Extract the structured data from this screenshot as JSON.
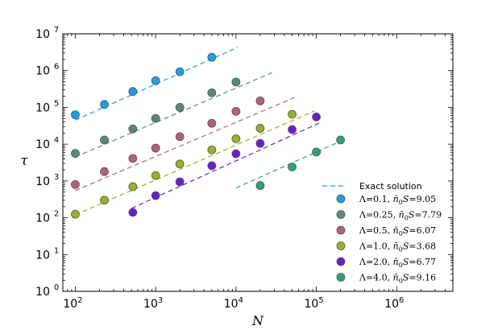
{
  "chart_data": {
    "type": "scatter",
    "xlabel": "N",
    "ylabel": "τ",
    "xscale": "log",
    "yscale": "log",
    "xlim": [
      70,
      5000000
    ],
    "ylim": [
      1,
      10000000
    ],
    "x_ticks": [
      {
        "value": 100,
        "base": "10",
        "exp": "2"
      },
      {
        "value": 1000,
        "base": "10",
        "exp": "3"
      },
      {
        "value": 10000,
        "base": "10",
        "exp": "4"
      },
      {
        "value": 100000,
        "base": "10",
        "exp": "5"
      },
      {
        "value": 1000000,
        "base": "10",
        "exp": "6"
      }
    ],
    "y_ticks": [
      {
        "value": 1,
        "base": "10",
        "exp": "0"
      },
      {
        "value": 10,
        "base": "10",
        "exp": "1"
      },
      {
        "value": 100,
        "base": "10",
        "exp": "2"
      },
      {
        "value": 1000,
        "base": "10",
        "exp": "3"
      },
      {
        "value": 10000,
        "base": "10",
        "exp": "4"
      },
      {
        "value": 100000,
        "base": "10",
        "exp": "5"
      },
      {
        "value": 1000000,
        "base": "10",
        "exp": "6"
      },
      {
        "value": 10000000,
        "base": "10",
        "exp": "7"
      }
    ],
    "legend_position": "lower-right",
    "legend_line_label": "Exact solution",
    "line_color": "#1f9fe0",
    "series": [
      {
        "name": "Λ=0.1, n̄₀S=9.05",
        "lambda": "0.1",
        "value": "9.05",
        "color": "#1f9fe0",
        "line_color": "#1f9fe0",
        "x": [
          100,
          230,
          520,
          1000,
          2000,
          5000
        ],
        "y": [
          63000,
          120000,
          270000,
          530000,
          930000,
          2300000
        ],
        "line": [
          [
            100,
            45000
          ],
          [
            10500,
            4300000
          ]
        ]
      },
      {
        "name": "Λ=0.25, n̄₀S=7.79",
        "lambda": "0.25",
        "value": "7.79",
        "color": "#5a8a77",
        "line_color": "#5a8a77",
        "x": [
          100,
          230,
          520,
          1000,
          2000,
          5000,
          10000
        ],
        "y": [
          5600,
          13000,
          26000,
          50000,
          100000,
          250000,
          490000
        ],
        "line": [
          [
            100,
            4500
          ],
          [
            28000,
            880000
          ]
        ]
      },
      {
        "name": "Λ=0.5, n̄₀S=6.07",
        "lambda": "0.5",
        "value": "6.07",
        "color": "#b5607a",
        "line_color": "#b5607a",
        "x": [
          100,
          230,
          520,
          1000,
          2000,
          5000,
          10000,
          20000
        ],
        "y": [
          800,
          1800,
          4100,
          7800,
          16000,
          37000,
          78000,
          150000
        ],
        "line": [
          [
            100,
            550
          ],
          [
            55000,
            190000
          ]
        ]
      },
      {
        "name": "Λ=1.0, n̄₀S=3.68",
        "lambda": "1.0",
        "value": "3.68",
        "color": "#9aaf2a",
        "line_color": "#9aaf2a",
        "x": [
          100,
          230,
          520,
          1000,
          2000,
          5000,
          10000,
          20000,
          50000
        ],
        "y": [
          125,
          300,
          700,
          1400,
          2900,
          7000,
          14000,
          27000,
          65000
        ],
        "line": [
          [
            100,
            120
          ],
          [
            95000,
            80000
          ]
        ]
      },
      {
        "name": "Λ=2.0, n̄₀S=6.77",
        "lambda": "2.0",
        "value": "6.77",
        "color": "#6a1fcc",
        "line_color": "#6a1fcc",
        "x": [
          520,
          1000,
          2000,
          5000,
          10000,
          20000,
          50000,
          100000
        ],
        "y": [
          140,
          400,
          950,
          2600,
          5500,
          10500,
          25000,
          55000
        ],
        "line": [
          [
            500,
            180
          ],
          [
            110000,
            38000
          ]
        ]
      },
      {
        "name": "Λ=4.0, n̄₀S=9.16",
        "lambda": "4.0",
        "value": "9.16",
        "color": "#2fa080",
        "line_color": "#2fa080",
        "x": [
          20000,
          50000,
          100000,
          200000
        ],
        "y": [
          750,
          2400,
          6100,
          13000
        ],
        "line": [
          [
            10000,
            650
          ],
          [
            200000,
            12000
          ]
        ]
      }
    ]
  }
}
